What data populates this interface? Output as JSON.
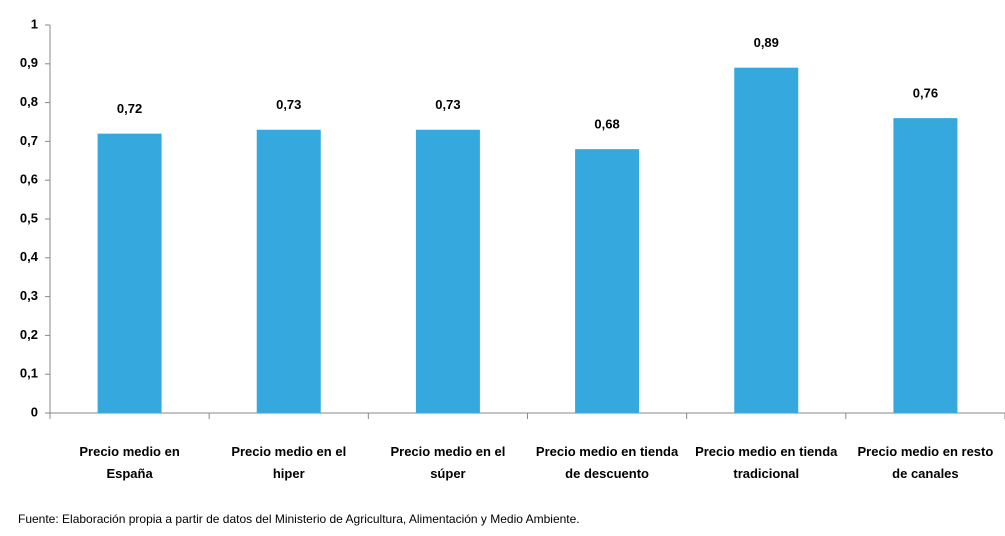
{
  "chart_data": {
    "type": "bar",
    "categories": [
      "Precio medio en España",
      "Precio medio en el hiper",
      "Precio medio en el súper",
      "Precio medio en tienda de descuento",
      "Precio medio en tienda tradicional",
      "Precio medio en resto de canales"
    ],
    "values": [
      0.72,
      0.73,
      0.73,
      0.68,
      0.89,
      0.76
    ],
    "value_labels": [
      "0,72",
      "0,73",
      "0,73",
      "0,68",
      "0,89",
      "0,76"
    ],
    "color": "#35a9dd",
    "ylim": [
      0,
      1
    ],
    "yticks": [
      0,
      {
        "value": 0.1,
        "label": "0,1"
      },
      {
        "value": 0.2,
        "label": "0,2"
      },
      {
        "value": 0.3,
        "label": "0,3"
      },
      {
        "value": 0.4,
        "label": "0,4"
      },
      {
        "value": 0.5,
        "label": "0,5"
      },
      {
        "value": 0.6,
        "label": "0,6"
      },
      {
        "value": 0.7,
        "label": "0,7"
      },
      {
        "value": 0.8,
        "label": "0,8"
      },
      {
        "value": 0.9,
        "label": "0,9"
      },
      1
    ],
    "grid": false,
    "source": "Fuente: Elaboración propia a partir de datos del Ministerio de Agricultura, Alimentación y Medio Ambiente."
  }
}
